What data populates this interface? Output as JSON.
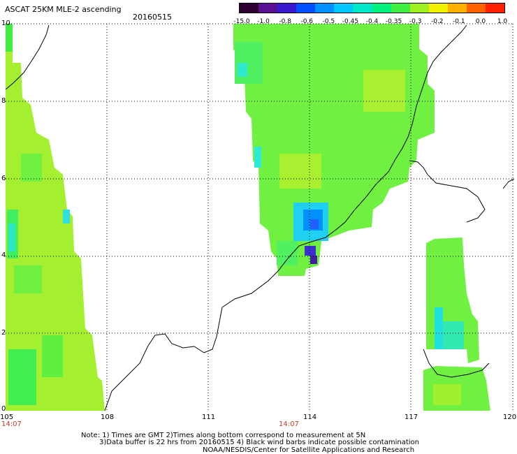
{
  "header": {
    "title": "ASCAT 25KM MLE-2 ascending",
    "date": "20160515"
  },
  "colorbar": {
    "labels": [
      "-15.0",
      "-1.0",
      "-0.8",
      "-0.6",
      "-0.5",
      "-0.45",
      "-0.4",
      "-0.35",
      "-0.3",
      "-0.2",
      "-0.1",
      "0.0",
      "1.0"
    ],
    "colors": [
      "#300030",
      "#5a1090",
      "#3a18d0",
      "#0050ff",
      "#0090ff",
      "#00c8ff",
      "#00e8c8",
      "#00f080",
      "#40f040",
      "#a0f020",
      "#f0f000",
      "#ffb000",
      "#ff6000",
      "#ff2000"
    ]
  },
  "axes": {
    "x_ticks": [
      "105",
      "108",
      "111",
      "114",
      "117",
      "120"
    ],
    "y_ticks": [
      "0",
      "2",
      "4",
      "6",
      "8",
      "10"
    ]
  },
  "time_labels": {
    "left": "14:07",
    "center": "14:07"
  },
  "notes": {
    "line1": "Note: 1) Times are GMT 2)Times along bottom correspond to measurement at 5N",
    "line2": "3)Data buffer is 22 hrs from 20160515 4) Black wind barbs indicate possible contamination",
    "line3": "NOAA/NESDIS/Center for Satellite Applications and Research"
  }
}
